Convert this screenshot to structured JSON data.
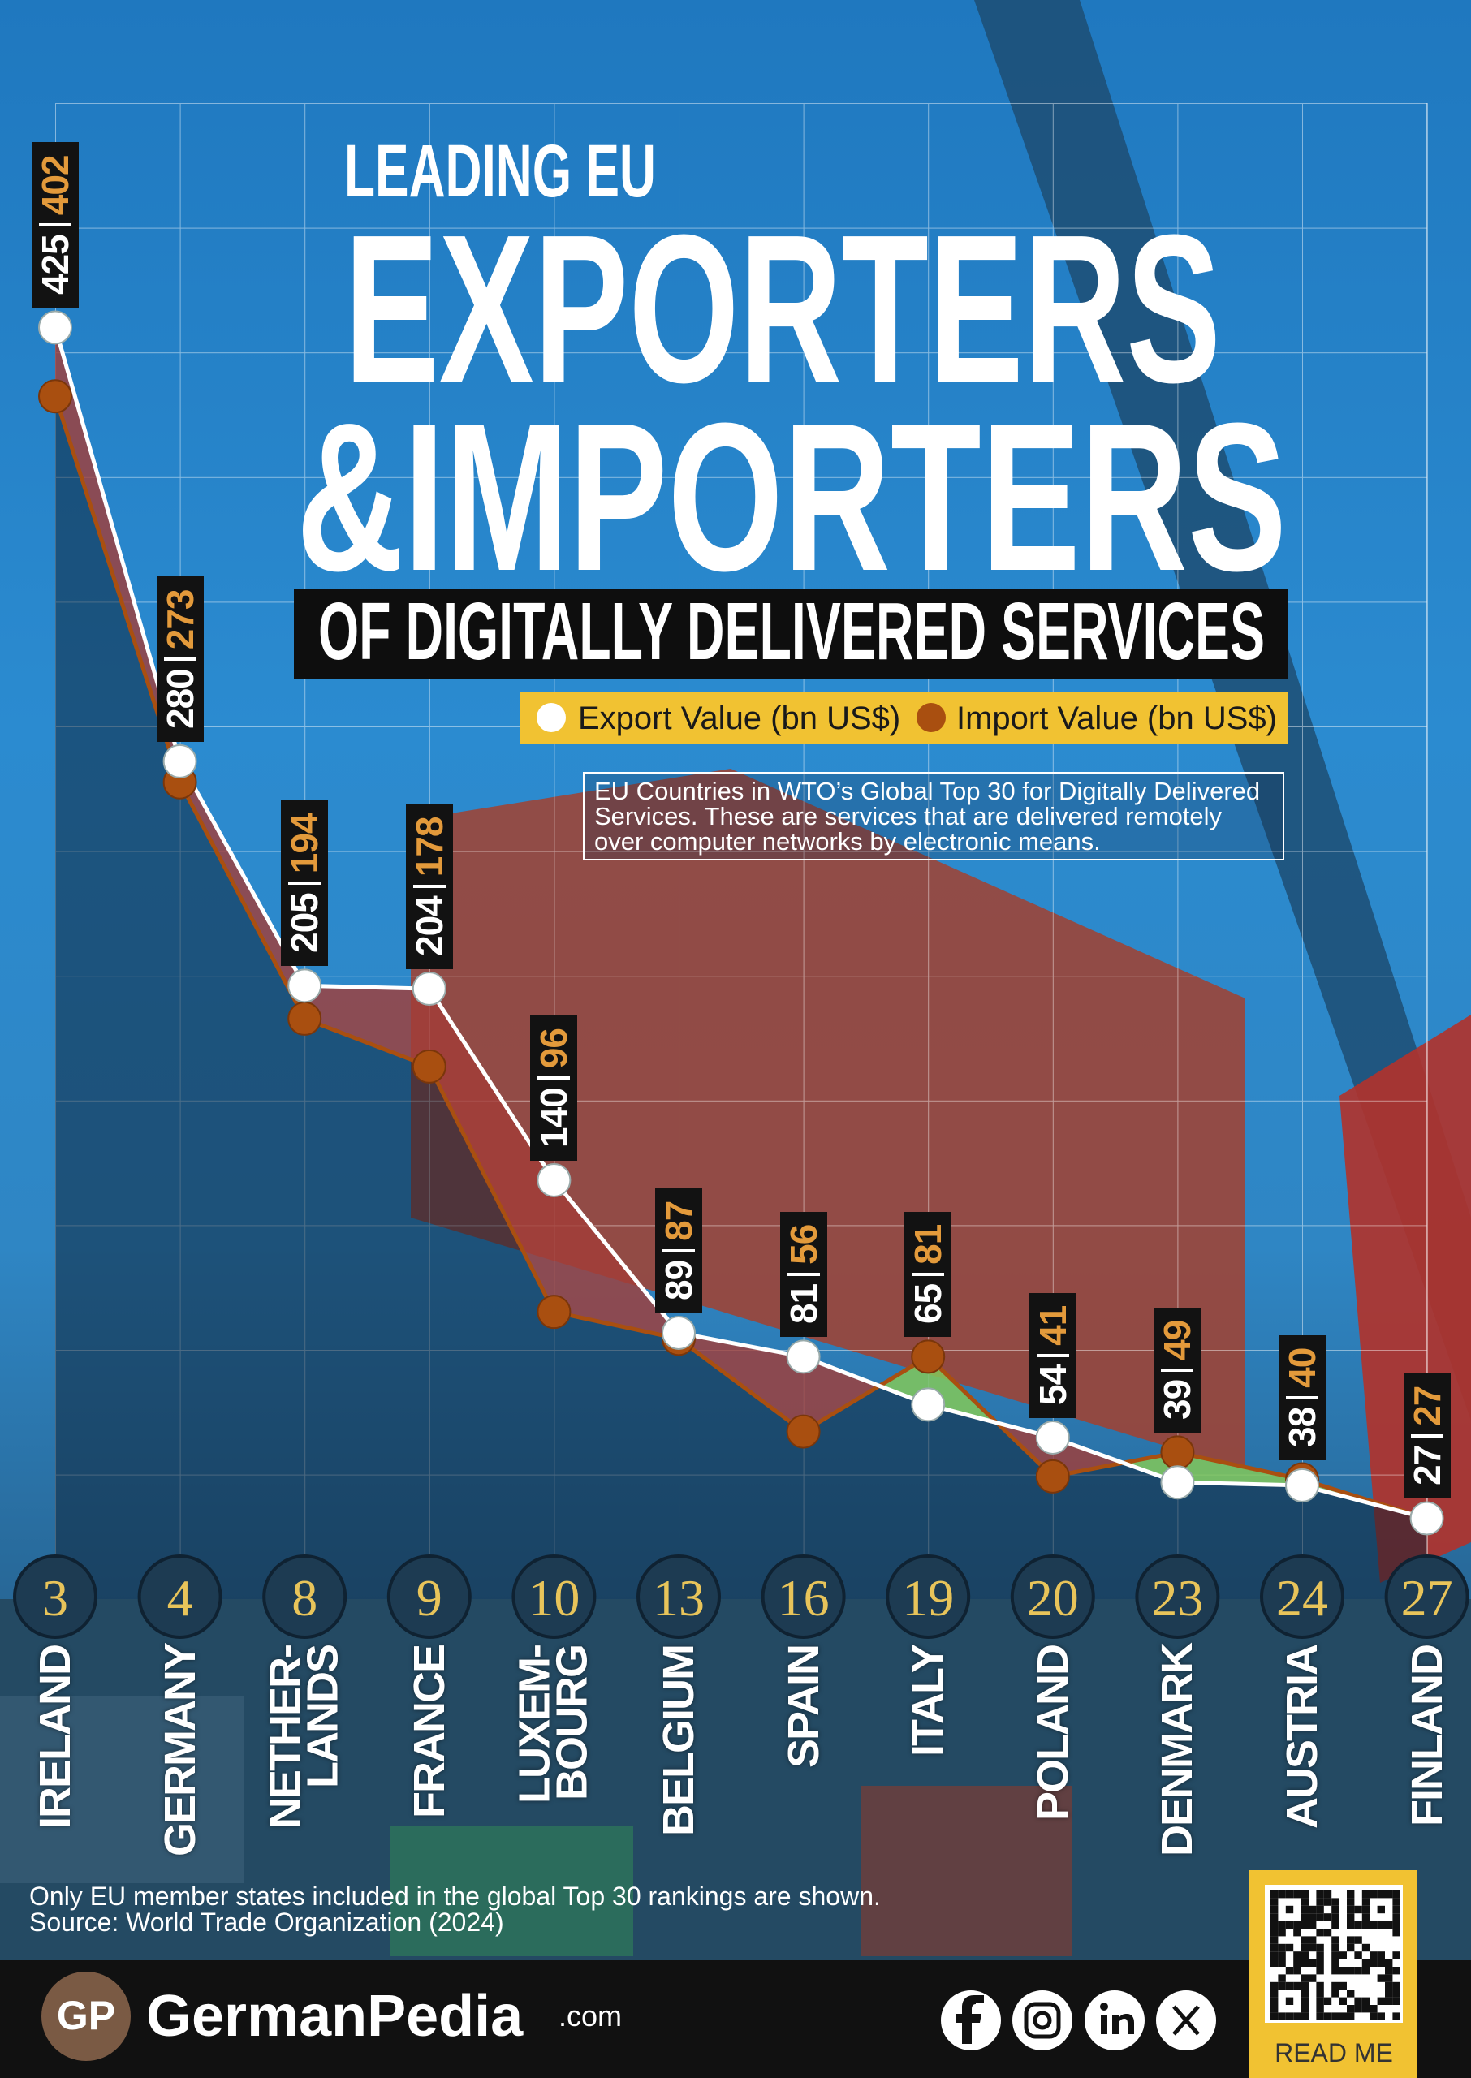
{
  "chart_data": {
    "type": "line",
    "title_kicker": "LEADING EU",
    "title_line1": "EXPORTERS",
    "title_line2": "&IMPORTERS",
    "subtitle": "OF DIGITALLY DELIVERED SERVICES",
    "note": "EU Countries in WTO’s Global Top 30 for Digitally Delivered Services. These are services that are delivered remotely over computer networks by electronic means.",
    "categories": [
      "IRELAND",
      "GERMANY",
      "NETHER-LANDS",
      "FRANCE",
      "LUXEM-BOURG",
      "BELGIUM",
      "SPAIN",
      "ITALY",
      "POLAND",
      "DENMARK",
      "AUSTRIA",
      "FINLAND"
    ],
    "ranks": [
      3,
      4,
      8,
      9,
      10,
      13,
      16,
      19,
      20,
      23,
      24,
      27
    ],
    "series": [
      {
        "name": "Export Value (bn US$)",
        "color": "#ffffff",
        "label_color": "#ffffff",
        "values": [
          425,
          280,
          205,
          204,
          140,
          89,
          81,
          65,
          54,
          39,
          38,
          27
        ]
      },
      {
        "name": "Import Value (bn US$)",
        "color": "#a94f10",
        "label_color": "#e39a3b",
        "values": [
          402,
          273,
          194,
          178,
          96,
          87,
          56,
          81,
          41,
          49,
          40,
          27
        ]
      }
    ],
    "ylim": [
      0,
      500
    ],
    "footnote": "Only EU member states included in the global Top 30 rankings are shown.",
    "source": "Source: World Trade Organization (2024)"
  },
  "footer": {
    "logo": "GP",
    "brand": "GermanPedia",
    "domain": ".com",
    "qr_label": "READ ME"
  }
}
